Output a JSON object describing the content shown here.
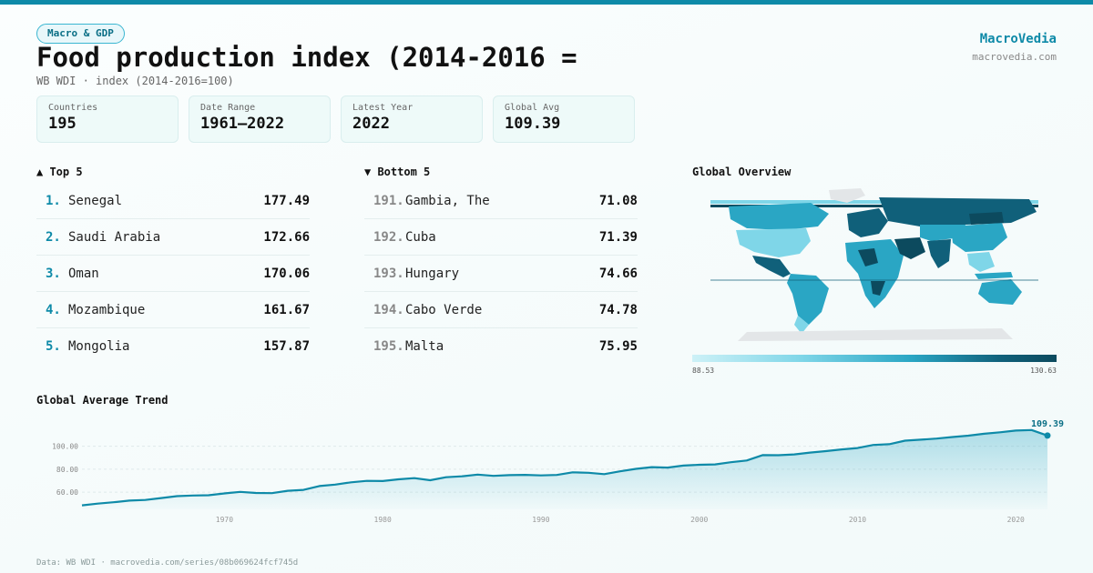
{
  "header": {
    "tag": "Macro & GDP",
    "title": "Food production index (2014-2016 =",
    "subtitle": "WB WDI · index (2014-2016=100)",
    "brand": "MacroVedia",
    "brand_url": "macrovedia.com"
  },
  "stats": [
    {
      "label": "Countries",
      "value": "195"
    },
    {
      "label": "Date Range",
      "value": "1961–2022"
    },
    {
      "label": "Latest Year",
      "value": "2022"
    },
    {
      "label": "Global Avg",
      "value": "109.39"
    }
  ],
  "top5": {
    "heading": "▲ Top 5",
    "items": [
      {
        "rank": "1.",
        "name": "Senegal",
        "value": "177.49"
      },
      {
        "rank": "2.",
        "name": "Saudi Arabia",
        "value": "172.66"
      },
      {
        "rank": "3.",
        "name": "Oman",
        "value": "170.06"
      },
      {
        "rank": "4.",
        "name": "Mozambique",
        "value": "161.67"
      },
      {
        "rank": "5.",
        "name": "Mongolia",
        "value": "157.87"
      }
    ]
  },
  "bottom5": {
    "heading": "▼ Bottom 5",
    "items": [
      {
        "rank": "191.",
        "name": "Gambia, The",
        "value": "71.08"
      },
      {
        "rank": "192.",
        "name": "Cuba",
        "value": "71.39"
      },
      {
        "rank": "193.",
        "name": "Hungary",
        "value": "74.66"
      },
      {
        "rank": "194.",
        "name": "Cabo Verde",
        "value": "74.78"
      },
      {
        "rank": "195.",
        "name": "Malta",
        "value": "75.95"
      }
    ]
  },
  "map": {
    "heading": "Global Overview",
    "legend_min": "88.53",
    "legend_max": "130.63",
    "colors": {
      "low": "#cdf1f7",
      "mid": "#2aa6c4",
      "high": "#0c4a5e",
      "nodata": "#e3e6e8"
    }
  },
  "trend_heading": "Global Average Trend",
  "chart_data": {
    "type": "area",
    "title": "Global Average Trend",
    "x": [
      1961,
      1962,
      1963,
      1964,
      1965,
      1966,
      1967,
      1968,
      1969,
      1970,
      1971,
      1972,
      1973,
      1974,
      1975,
      1976,
      1977,
      1978,
      1979,
      1980,
      1981,
      1982,
      1983,
      1984,
      1985,
      1986,
      1987,
      1988,
      1989,
      1990,
      1991,
      1992,
      1993,
      1994,
      1995,
      1996,
      1997,
      1998,
      1999,
      2000,
      2001,
      2002,
      2003,
      2004,
      2005,
      2006,
      2007,
      2008,
      2009,
      2010,
      2011,
      2012,
      2013,
      2014,
      2015,
      2016,
      2017,
      2018,
      2019,
      2020,
      2021,
      2022
    ],
    "y": [
      48.5,
      50,
      51.2,
      52.6,
      53.2,
      54.8,
      56.5,
      57.1,
      57.3,
      58.9,
      60.2,
      59.3,
      59.1,
      61.2,
      62,
      65.3,
      66.6,
      68.6,
      69.8,
      69.7,
      71.2,
      72.2,
      70.4,
      73,
      73.8,
      75.3,
      74.2,
      74.8,
      75.1,
      74.6,
      75,
      77.3,
      76.9,
      75.7,
      78.2,
      80.3,
      81.8,
      81.4,
      83.2,
      83.9,
      84.2,
      86.1,
      87.6,
      92.3,
      92.2,
      92.9,
      94.5,
      95.8,
      97.3,
      98.5,
      101.2,
      101.8,
      104.9,
      105.8,
      106.7,
      108.1,
      109.3,
      110.9,
      112.2,
      113.7,
      114.2,
      109.39
    ],
    "x_ticks": [
      1970,
      1980,
      1990,
      2000,
      2010,
      2020
    ],
    "y_ticks": [
      "60.00",
      "80.00",
      "100.00"
    ],
    "y_tick_values": [
      60,
      80,
      100
    ],
    "ylim": [
      45,
      118
    ],
    "last_label": "109.39",
    "line_color": "#0e8aa8"
  },
  "footer": "Data: WB WDI · macrovedia.com/series/08b069624fcf745d"
}
